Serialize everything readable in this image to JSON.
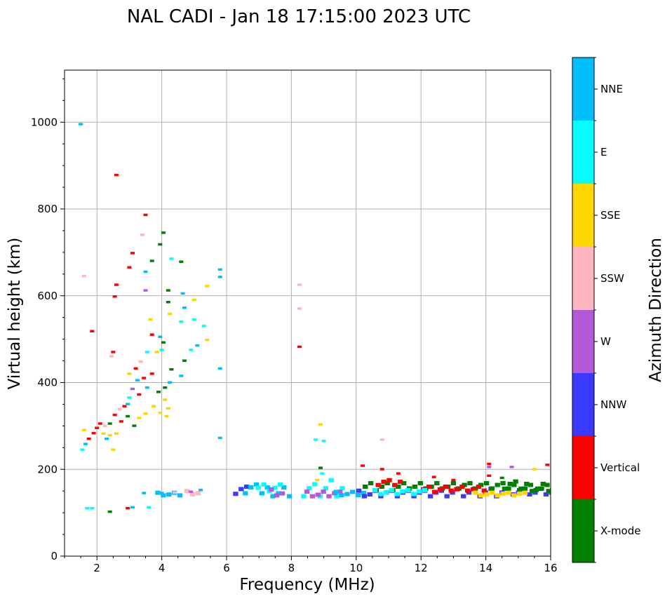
{
  "chart_data": {
    "type": "scatter",
    "title": "NAL CADI - Jan 18 17:15:00 2023 UTC",
    "xlabel": "Frequency (MHz)",
    "ylabel": "Virtual height (km)",
    "xlim": [
      1,
      16
    ],
    "ylim": [
      0,
      1120
    ],
    "xticks": [
      2,
      4,
      6,
      8,
      10,
      12,
      14,
      16
    ],
    "yticks": [
      0,
      200,
      400,
      600,
      800,
      1000
    ],
    "grid": true,
    "colorbar": {
      "label": "Azimuth Direction",
      "categories": [
        {
          "name": "X-mode",
          "color": "#008000"
        },
        {
          "name": "Vertical",
          "color": "#ff0000"
        },
        {
          "name": "NNW",
          "color": "#3a3aff"
        },
        {
          "name": "W",
          "color": "#b45ad6"
        },
        {
          "name": "SSW",
          "color": "#ffb6c1"
        },
        {
          "name": "SSE",
          "color": "#ffd700"
        },
        {
          "name": "E",
          "color": "#00ffff"
        },
        {
          "name": "NNE",
          "color": "#00bfff"
        }
      ]
    },
    "points": [
      [
        1.5,
        995,
        "NNE"
      ],
      [
        1.6,
        645,
        "SSW"
      ],
      [
        1.85,
        518,
        "Vertical"
      ],
      [
        2.6,
        878,
        "Vertical"
      ],
      [
        2.55,
        598,
        "Vertical"
      ],
      [
        2.6,
        625,
        "Vertical"
      ],
      [
        2.5,
        470,
        "Vertical"
      ],
      [
        2.45,
        460,
        "SSW"
      ],
      [
        3.0,
        665,
        "Vertical"
      ],
      [
        3.1,
        698,
        "Vertical"
      ],
      [
        3.4,
        740,
        "SSW"
      ],
      [
        3.5,
        786,
        "Vertical"
      ],
      [
        3.5,
        655,
        "NNE"
      ],
      [
        3.5,
        612,
        "W"
      ],
      [
        3.7,
        680,
        "X-mode"
      ],
      [
        3.95,
        718,
        "X-mode"
      ],
      [
        4.05,
        745,
        "X-mode"
      ],
      [
        4.3,
        685,
        "E"
      ],
      [
        4.6,
        678,
        "X-mode"
      ],
      [
        4.2,
        612,
        "X-mode"
      ],
      [
        4.2,
        585,
        "X-mode"
      ],
      [
        4.65,
        605,
        "NNE"
      ],
      [
        5.0,
        590,
        "SSE"
      ],
      [
        5.4,
        622,
        "SSE"
      ],
      [
        5.8,
        660,
        "NNE"
      ],
      [
        5.8,
        643,
        "NNE"
      ],
      [
        4.7,
        572,
        "NNE"
      ],
      [
        4.6,
        540,
        "E"
      ],
      [
        5.0,
        545,
        "E"
      ],
      [
        5.3,
        530,
        "E"
      ],
      [
        5.1,
        485,
        "NNE"
      ],
      [
        5.4,
        498,
        "SSE"
      ],
      [
        4.9,
        475,
        "E"
      ],
      [
        4.7,
        450,
        "X-mode"
      ],
      [
        4.6,
        415,
        "NNE"
      ],
      [
        5.8,
        432,
        "NNE"
      ],
      [
        5.8,
        272,
        "NNE"
      ],
      [
        4.3,
        430,
        "X-mode"
      ],
      [
        4.25,
        400,
        "NNE"
      ],
      [
        4.1,
        388,
        "X-mode"
      ],
      [
        4.05,
        492,
        "X-mode"
      ],
      [
        4.0,
        475,
        "E"
      ],
      [
        4.25,
        558,
        "SSE"
      ],
      [
        3.95,
        505,
        "NNE"
      ],
      [
        3.85,
        470,
        "SSE"
      ],
      [
        3.65,
        545,
        "SSE"
      ],
      [
        3.7,
        510,
        "Vertical"
      ],
      [
        3.55,
        470,
        "E"
      ],
      [
        3.35,
        448,
        "SSW"
      ],
      [
        3.2,
        432,
        "Vertical"
      ],
      [
        3.0,
        420,
        "SSE"
      ],
      [
        3.25,
        405,
        "NNE"
      ],
      [
        3.45,
        410,
        "Vertical"
      ],
      [
        3.7,
        420,
        "Vertical"
      ],
      [
        3.9,
        378,
        "X-mode"
      ],
      [
        4.1,
        360,
        "SSE"
      ],
      [
        3.75,
        345,
        "SSE"
      ],
      [
        3.5,
        328,
        "SSE"
      ],
      [
        3.3,
        318,
        "SSE"
      ],
      [
        3.15,
        300,
        "X-mode"
      ],
      [
        2.95,
        322,
        "X-mode"
      ],
      [
        2.85,
        345,
        "Vertical"
      ],
      [
        2.7,
        338,
        "SSW"
      ],
      [
        2.55,
        325,
        "Vertical"
      ],
      [
        2.4,
        305,
        "X-mode"
      ],
      [
        2.25,
        300,
        "SSW"
      ],
      [
        2.1,
        305,
        "Vertical"
      ],
      [
        2.0,
        295,
        "Vertical"
      ],
      [
        1.9,
        283,
        "Vertical"
      ],
      [
        1.75,
        270,
        "Vertical"
      ],
      [
        1.65,
        258,
        "NNE"
      ],
      [
        1.55,
        245,
        "E"
      ],
      [
        1.6,
        290,
        "SSE"
      ],
      [
        2.2,
        282,
        "SSE"
      ],
      [
        2.4,
        278,
        "SSE"
      ],
      [
        2.6,
        282,
        "SSE"
      ],
      [
        2.5,
        245,
        "SSE"
      ],
      [
        2.3,
        270,
        "NNE"
      ],
      [
        3.0,
        365,
        "E"
      ],
      [
        3.3,
        372,
        "Vertical"
      ],
      [
        3.55,
        388,
        "NNE"
      ],
      [
        3.1,
        385,
        "W"
      ],
      [
        2.95,
        350,
        "NNE"
      ],
      [
        2.75,
        310,
        "Vertical"
      ],
      [
        3.95,
        330,
        "SSE"
      ],
      [
        4.2,
        340,
        "SSE"
      ],
      [
        4.15,
        322,
        "SSE"
      ],
      [
        8.25,
        625,
        "SSW"
      ],
      [
        8.25,
        570,
        "SSW"
      ],
      [
        8.25,
        482,
        "Vertical"
      ],
      [
        8.9,
        303,
        "SSE"
      ],
      [
        8.75,
        268,
        "E"
      ],
      [
        9.0,
        265,
        "E"
      ],
      [
        10.8,
        268,
        "SSW"
      ],
      [
        8.9,
        203,
        "X-mode"
      ],
      [
        8.95,
        190,
        "E"
      ],
      [
        8.8,
        175,
        "SSE"
      ],
      [
        10.2,
        208,
        "Vertical"
      ],
      [
        10.8,
        200,
        "Vertical"
      ],
      [
        11.3,
        190,
        "Vertical"
      ],
      [
        12.4,
        182,
        "Vertical"
      ],
      [
        14.1,
        212,
        "Vertical"
      ],
      [
        14.1,
        205,
        "W"
      ],
      [
        14.8,
        205,
        "W"
      ],
      [
        15.5,
        200,
        "SSE"
      ],
      [
        15.9,
        210,
        "Vertical"
      ],
      [
        14.1,
        185,
        "Vertical"
      ],
      [
        13.0,
        175,
        "Vertical"
      ],
      [
        14.5,
        180,
        "X-mode"
      ],
      [
        1.7,
        110,
        "E"
      ],
      [
        1.85,
        110,
        "E"
      ],
      [
        2.4,
        102,
        "X-mode"
      ],
      [
        2.95,
        110,
        "Vertical"
      ],
      [
        3.1,
        112,
        "NNE"
      ],
      [
        3.6,
        112,
        "E"
      ],
      [
        3.45,
        145,
        "NNE"
      ],
      [
        4.0,
        145,
        "NNE"
      ],
      [
        4.4,
        146,
        "SSW"
      ],
      [
        4.9,
        148,
        "W"
      ],
      [
        5.2,
        152,
        "NNE"
      ]
    ],
    "bands": [
      {
        "x": [
          3.8,
          4.5
        ],
        "y": [
          140,
          148
        ],
        "az": "NNE"
      },
      {
        "x": [
          4.7,
          5.2
        ],
        "y": [
          140,
          150
        ],
        "az": "SSW"
      },
      {
        "x": [
          6.2,
          6.6
        ],
        "y": [
          138,
          160
        ],
        "az": "NNW"
      },
      {
        "x": [
          6.5,
          8.0
        ],
        "y": [
          138,
          165
        ],
        "az": "NNE"
      },
      {
        "x": [
          6.9,
          7.6
        ],
        "y": [
          150,
          165
        ],
        "az": "E"
      },
      {
        "x": [
          7.3,
          7.8
        ],
        "y": [
          140,
          158
        ],
        "az": "W"
      },
      {
        "x": [
          8.3,
          9.5
        ],
        "y": [
          138,
          175
        ],
        "az": "E"
      },
      {
        "x": [
          8.4,
          9.5
        ],
        "y": [
          138,
          152
        ],
        "az": "W"
      },
      {
        "x": [
          9.3,
          10.2
        ],
        "y": [
          138,
          148
        ],
        "az": "NNE"
      },
      {
        "x": [
          10.0,
          16.0
        ],
        "y": [
          138,
          155
        ],
        "az": "NNW"
      },
      {
        "x": [
          10.2,
          16.0
        ],
        "y": [
          152,
          168
        ],
        "az": "X-mode"
      },
      {
        "x": [
          12.0,
          14.0
        ],
        "y": [
          148,
          160
        ],
        "az": "Vertical"
      },
      {
        "x": [
          10.5,
          12.2
        ],
        "y": [
          140,
          152
        ],
        "az": "E"
      },
      {
        "x": [
          14.5,
          16.0
        ],
        "y": [
          150,
          172
        ],
        "az": "X-mode"
      },
      {
        "x": [
          13.6,
          15.2
        ],
        "y": [
          138,
          146
        ],
        "az": "SSE"
      },
      {
        "x": [
          10.6,
          11.4
        ],
        "y": [
          160,
          175
        ],
        "az": "Vertical"
      }
    ]
  }
}
